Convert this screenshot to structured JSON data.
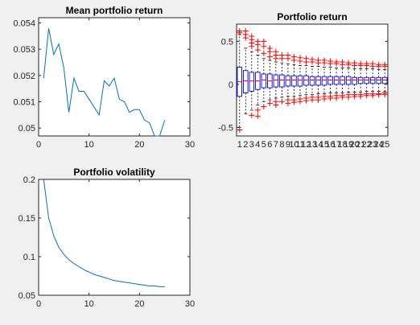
{
  "chart_data": [
    {
      "type": "line",
      "title": "Mean portfolio return",
      "xlim": [
        0,
        30
      ],
      "ylim": [
        0.0497,
        0.0542
      ],
      "xticks": [
        "0",
        "10",
        "20",
        "30"
      ],
      "yticks": [
        "0.05",
        "0.051",
        "0.052",
        "0.053",
        "0.054"
      ],
      "line_color": "#0072bd",
      "x": [
        1,
        2,
        3,
        4,
        5,
        6,
        7,
        8,
        9,
        10,
        11,
        12,
        13,
        14,
        15,
        16,
        17,
        18,
        19,
        20,
        21,
        22,
        23,
        24,
        25
      ],
      "y": [
        0.0519,
        0.0538,
        0.0528,
        0.0532,
        0.0523,
        0.0506,
        0.0519,
        0.0514,
        0.0514,
        0.0511,
        0.0508,
        0.0505,
        0.0518,
        0.0516,
        0.0519,
        0.0511,
        0.051,
        0.0506,
        0.0507,
        0.0507,
        0.0503,
        0.0502,
        0.0497,
        0.0497,
        0.0503
      ]
    },
    {
      "type": "boxplot",
      "title": "Portfolio return",
      "ylim": [
        -0.6,
        0.7
      ],
      "yticks": [
        "-0.5",
        "0",
        "0.5"
      ],
      "categories": [
        "1",
        "2",
        "3",
        "4",
        "5",
        "6",
        "7",
        "8",
        "9",
        "10",
        "11",
        "12",
        "13",
        "14",
        "15",
        "16",
        "17",
        "18",
        "19",
        "20",
        "21",
        "22",
        "23",
        "24",
        "25"
      ],
      "box_color": "#0000ff",
      "median_color": "#ff0000",
      "whisker_color": "#000000",
      "outlier_color": "#ff0000",
      "boxes": [
        {
          "q1": -0.14,
          "median": 0.03,
          "q3": 0.2,
          "wlo": -0.5,
          "whi": 0.58,
          "outliers": [
            -0.53,
            0.6,
            0.62
          ]
        },
        {
          "q1": -0.1,
          "median": 0.04,
          "q3": 0.16,
          "wlo": -0.34,
          "whi": 0.42,
          "outliers": [
            0.54,
            0.58,
            0.62
          ]
        },
        {
          "q1": -0.08,
          "median": 0.04,
          "q3": 0.14,
          "wlo": -0.3,
          "whi": 0.38,
          "outliers": [
            -0.36,
            0.44,
            0.48,
            0.52,
            0.56
          ]
        },
        {
          "q1": -0.06,
          "median": 0.04,
          "q3": 0.14,
          "wlo": -0.24,
          "whi": 0.34,
          "outliers": [
            -0.3,
            -0.37,
            0.4,
            0.46,
            0.5
          ]
        },
        {
          "q1": -0.04,
          "median": 0.05,
          "q3": 0.12,
          "wlo": -0.2,
          "whi": 0.3,
          "outliers": [
            -0.26,
            0.36,
            0.44,
            0.5
          ]
        },
        {
          "q1": -0.04,
          "median": 0.04,
          "q3": 0.12,
          "wlo": -0.18,
          "whi": 0.28,
          "outliers": [
            -0.22,
            0.32,
            0.38,
            0.42
          ]
        },
        {
          "q1": -0.03,
          "median": 0.05,
          "q3": 0.11,
          "wlo": -0.16,
          "whi": 0.26,
          "outliers": [
            -0.2,
            -0.24,
            0.3,
            0.34,
            0.38
          ]
        },
        {
          "q1": -0.03,
          "median": 0.05,
          "q3": 0.11,
          "wlo": -0.15,
          "whi": 0.25,
          "outliers": [
            -0.2,
            0.3,
            0.34
          ]
        },
        {
          "q1": -0.02,
          "median": 0.05,
          "q3": 0.1,
          "wlo": -0.14,
          "whi": 0.24,
          "outliers": [
            -0.18,
            -0.22,
            0.3,
            0.34
          ]
        },
        {
          "q1": -0.02,
          "median": 0.05,
          "q3": 0.1,
          "wlo": -0.14,
          "whi": 0.23,
          "outliers": [
            -0.18,
            -0.21,
            0.28,
            0.32
          ]
        },
        {
          "q1": -0.02,
          "median": 0.05,
          "q3": 0.1,
          "wlo": -0.13,
          "whi": 0.22,
          "outliers": [
            -0.17,
            -0.2,
            0.27,
            0.31
          ]
        },
        {
          "q1": -0.01,
          "median": 0.05,
          "q3": 0.1,
          "wlo": -0.12,
          "whi": 0.22,
          "outliers": [
            -0.16,
            -0.19,
            0.26,
            0.3
          ]
        },
        {
          "q1": -0.01,
          "median": 0.05,
          "q3": 0.09,
          "wlo": -0.12,
          "whi": 0.21,
          "outliers": [
            -0.15,
            -0.18,
            0.26,
            0.29
          ]
        },
        {
          "q1": -0.01,
          "median": 0.05,
          "q3": 0.09,
          "wlo": -0.11,
          "whi": 0.21,
          "outliers": [
            -0.15,
            -0.18,
            0.25,
            0.28
          ]
        },
        {
          "q1": -0.01,
          "median": 0.05,
          "q3": 0.09,
          "wlo": -0.11,
          "whi": 0.2,
          "outliers": [
            -0.14,
            -0.17,
            0.25,
            0.28
          ]
        },
        {
          "q1": 0.0,
          "median": 0.05,
          "q3": 0.09,
          "wlo": -0.1,
          "whi": 0.2,
          "outliers": [
            -0.14,
            -0.16,
            0.24,
            0.27
          ]
        },
        {
          "q1": 0.0,
          "median": 0.05,
          "q3": 0.09,
          "wlo": -0.1,
          "whi": 0.19,
          "outliers": [
            -0.13,
            -0.16,
            0.24,
            0.26
          ]
        },
        {
          "q1": 0.0,
          "median": 0.05,
          "q3": 0.09,
          "wlo": -0.1,
          "whi": 0.19,
          "outliers": [
            -0.13,
            -0.15,
            0.23,
            0.26
          ]
        },
        {
          "q1": 0.0,
          "median": 0.05,
          "q3": 0.09,
          "wlo": -0.09,
          "whi": 0.19,
          "outliers": [
            -0.12,
            -0.15,
            0.23,
            0.25
          ]
        },
        {
          "q1": 0.0,
          "median": 0.05,
          "q3": 0.08,
          "wlo": -0.09,
          "whi": 0.18,
          "outliers": [
            -0.12,
            -0.14,
            0.22,
            0.25
          ]
        },
        {
          "q1": 0.01,
          "median": 0.05,
          "q3": 0.08,
          "wlo": -0.09,
          "whi": 0.18,
          "outliers": [
            -0.12,
            -0.14,
            0.22,
            0.24
          ]
        },
        {
          "q1": 0.01,
          "median": 0.05,
          "q3": 0.08,
          "wlo": -0.08,
          "whi": 0.18,
          "outliers": [
            -0.11,
            -0.13,
            0.22,
            0.24
          ]
        },
        {
          "q1": 0.01,
          "median": 0.05,
          "q3": 0.08,
          "wlo": -0.08,
          "whi": 0.18,
          "outliers": [
            -0.11,
            -0.13,
            0.21,
            0.24
          ]
        },
        {
          "q1": 0.01,
          "median": 0.05,
          "q3": 0.08,
          "wlo": -0.08,
          "whi": 0.17,
          "outliers": [
            -0.11,
            -0.12,
            0.21,
            0.23
          ]
        },
        {
          "q1": 0.01,
          "median": 0.05,
          "q3": 0.08,
          "wlo": -0.08,
          "whi": 0.17,
          "outliers": [
            -0.1,
            -0.12,
            0.21,
            0.23
          ]
        }
      ]
    },
    {
      "type": "line",
      "title": "Portfolio volatility",
      "xlim": [
        0,
        30
      ],
      "ylim": [
        0.05,
        0.2
      ],
      "xticks": [
        "0",
        "10",
        "20",
        "30"
      ],
      "yticks": [
        "0.05",
        "0.1",
        "0.15",
        "0.2"
      ],
      "line_color": "#0072bd",
      "x": [
        1,
        2,
        3,
        4,
        5,
        6,
        7,
        8,
        9,
        10,
        11,
        12,
        13,
        14,
        15,
        16,
        17,
        18,
        19,
        20,
        21,
        22,
        23,
        24,
        25
      ],
      "y": [
        0.2,
        0.15,
        0.127,
        0.112,
        0.103,
        0.096,
        0.091,
        0.087,
        0.083,
        0.08,
        0.077,
        0.075,
        0.073,
        0.071,
        0.069,
        0.068,
        0.067,
        0.066,
        0.065,
        0.064,
        0.063,
        0.062,
        0.062,
        0.061,
        0.061
      ]
    }
  ]
}
